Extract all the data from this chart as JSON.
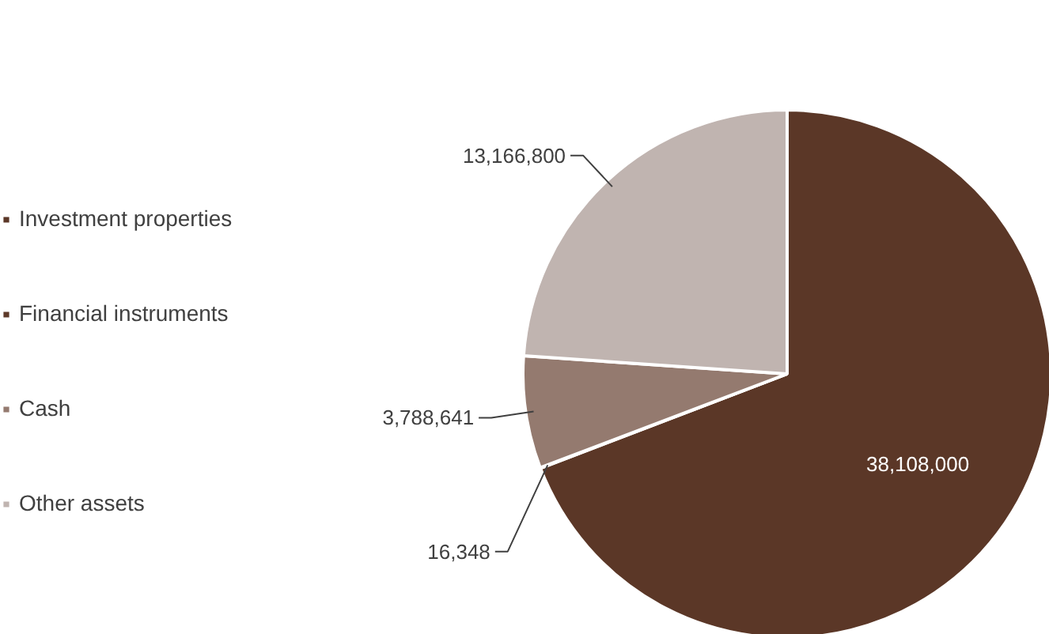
{
  "chart_data": {
    "type": "pie",
    "categories": [
      "Investment properties",
      "Financial instruments",
      "Cash",
      "Other assets"
    ],
    "values": [
      38108000,
      16348,
      3788641,
      13166800
    ],
    "colors": [
      "#5b3727",
      "#5e3a2a",
      "#947a6f",
      "#c0b4b0"
    ],
    "value_labels": [
      "38,108,000",
      "16,348",
      "3,788,641",
      "13,166,800"
    ],
    "legend": "left"
  }
}
